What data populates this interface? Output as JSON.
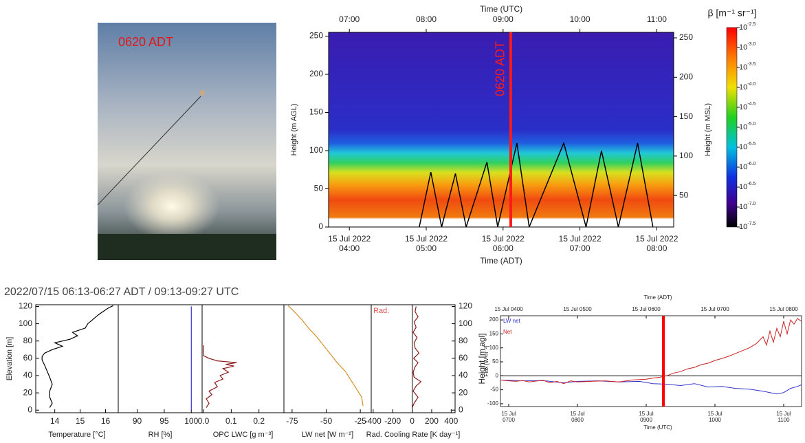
{
  "photo": {
    "label": "0620 ADT"
  },
  "chart_data": [
    {
      "type": "heatmap",
      "x_label": "Time (ADT)",
      "x2_label": "Time (UTC)",
      "y_label": "Height (m AGL)",
      "y2_label": "Height (m MSL)",
      "xlim": [
        3.73,
        8.22
      ],
      "xtick_date": "15 Jul 2022",
      "xticks": [
        {
          "value": 4,
          "label": "04:00"
        },
        {
          "value": 5,
          "label": "05:00"
        },
        {
          "value": 6,
          "label": "06:00"
        },
        {
          "value": 7,
          "label": "07:00"
        },
        {
          "value": 8,
          "label": "08:00"
        }
      ],
      "x2lim": [
        6.73,
        11.22
      ],
      "x2ticks": [
        {
          "value": 7,
          "label": "07:00"
        },
        {
          "value": 8,
          "label": "08:00"
        },
        {
          "value": 9,
          "label": "09:00"
        },
        {
          "value": 10,
          "label": "10:00"
        },
        {
          "value": 11,
          "label": "11:00"
        }
      ],
      "ylim": [
        0,
        255
      ],
      "yticks": [
        0,
        50,
        100,
        150,
        200,
        250
      ],
      "y2lim": [
        10,
        257
      ],
      "y2ticks": [
        50,
        100,
        150,
        200,
        250
      ],
      "series": [
        {
          "color": "#000000",
          "x": [
            4.91,
            5.06,
            5.2,
            5.38,
            5.52,
            5.79,
            5.93,
            6.18,
            6.34,
            6.79,
            7.08,
            7.28,
            7.5,
            7.75,
            7.95
          ],
          "values": [
            0,
            72,
            0,
            70,
            0,
            85,
            0,
            110,
            0,
            110,
            0,
            100,
            0,
            110,
            0
          ]
        }
      ],
      "marker": {
        "x": 6.1,
        "label": "0620 ADT",
        "color": "#ff1a1a"
      },
      "colorbar": {
        "title": "β [m⁻¹ sr⁻¹]",
        "base": "10",
        "lim": [
          -7.5,
          -2.5
        ],
        "ticks": [
          -2.5,
          {
            "value": -3,
            "label": "-3.0"
          },
          -3.5,
          {
            "value": -4,
            "label": "-4.0"
          },
          -4.5,
          {
            "value": -5,
            "label": "-5.0"
          },
          -5.5,
          {
            "value": -6,
            "label": "-6.0"
          },
          -6.5,
          {
            "value": -7,
            "label": "-7.0"
          },
          -7.5
        ]
      }
    },
    {
      "type": "profile",
      "title": "2022/07/15 06:13-06:27 ADT  /  09:13-09:27 UTC",
      "y_label": "Elevation [m]",
      "y2_label": "Height [m agl]",
      "ylim": [
        -3,
        122
      ],
      "yticks": [
        0,
        20,
        40,
        60,
        80,
        100,
        120
      ],
      "panels": [
        {
          "x_label": "Temperature [°C]",
          "xlim": [
            13.25,
            16.5
          ],
          "xticks": [
            14,
            15,
            16
          ],
          "color": "#000000",
          "x": [
            13.8,
            13.9,
            13.8,
            13.8,
            13.9,
            13.8,
            13.7,
            13.6,
            13.5,
            13.5,
            13.6,
            13.9,
            14.3,
            14.0,
            14.6,
            14.9,
            14.7,
            15.2,
            15.3,
            15.5,
            15.7,
            15.9,
            16.1,
            16.3
          ],
          "y": [
            3,
            8,
            15,
            22,
            30,
            38,
            45,
            52,
            58,
            62,
            66,
            70,
            74,
            78,
            82,
            86,
            90,
            95,
            100,
            105,
            110,
            114,
            118,
            121
          ]
        },
        {
          "x_label": "RH [%]",
          "xlim": [
            86.5,
            102
          ],
          "xticks": [
            90,
            95,
            100
          ],
          "color": "#3333cc",
          "x": [
            100,
            100
          ],
          "y": [
            0,
            120
          ]
        },
        {
          "x_label": "OPC LWC [g m⁻³]",
          "xlim": [
            -0.005,
            0.29
          ],
          "xticks": [
            {
              "value": 0,
              "label": "0.0"
            },
            0.1,
            0.2
          ],
          "color": "#8b1a1a",
          "x": [
            0.01,
            0.02,
            0.01,
            0.03,
            0.02,
            0.05,
            0.04,
            0.07,
            0.06,
            0.09,
            0.07,
            0.11,
            0.08,
            0.12,
            0.05,
            0.02,
            0.0,
            0.0,
            0.0
          ],
          "y": [
            3,
            8,
            13,
            18,
            22,
            27,
            32,
            36,
            40,
            44,
            48,
            51,
            53,
            55,
            57,
            60,
            63,
            68,
            75
          ]
        },
        {
          "x_label": "LW net [W m⁻²]",
          "xlim": [
            -81,
            -17
          ],
          "xticks": [
            -75,
            -50,
            -25
          ],
          "color": "#d4912a",
          "x": [
            -23,
            -24,
            -28,
            -32,
            -36,
            -42,
            -47,
            -52,
            -57,
            -63,
            -68,
            -74,
            -78
          ],
          "y": [
            5,
            15,
            25,
            35,
            45,
            55,
            65,
            75,
            85,
            95,
            105,
            115,
            121
          ]
        },
        {
          "x_label": "Rad. Cooling Rate [K day⁻¹]",
          "xlim": [
            -420,
            440
          ],
          "xticks": [
            -400,
            -200,
            0,
            200,
            400
          ],
          "color": "#8b1a1a",
          "annotation": "Rad.",
          "x": [
            0,
            20,
            60,
            10,
            40,
            90,
            20,
            10,
            30,
            60,
            15,
            70,
            30,
            20,
            50,
            10,
            40,
            20,
            60,
            30,
            40
          ],
          "y": [
            3,
            8,
            15,
            22,
            28,
            33,
            38,
            44,
            50,
            55,
            60,
            66,
            72,
            78,
            84,
            90,
            96,
            102,
            108,
            114,
            120
          ]
        }
      ]
    },
    {
      "type": "line",
      "x_label": "Time (UTC)",
      "x2_label": "Time (ADT)",
      "y_label": "Flux [W m⁻²]",
      "xlim": [
        6.88,
        11.26
      ],
      "xtick_date": "15 Jul",
      "xticks": [
        {
          "value": 7,
          "label": "0700"
        },
        {
          "value": 8,
          "label": "0800"
        },
        {
          "value": 9,
          "label": "0900"
        },
        {
          "value": 10,
          "label": "1000"
        },
        {
          "value": 11,
          "label": "1100"
        }
      ],
      "x2lim": [
        3.88,
        8.26
      ],
      "x2ticks": [
        {
          "value": 4,
          "label": "15 Jul 0400"
        },
        {
          "value": 5,
          "label": "15 Jul 0500"
        },
        {
          "value": 6,
          "label": "15 Jul 0600"
        },
        {
          "value": 7,
          "label": "15 Jul 0700"
        },
        {
          "value": 8,
          "label": "15 Jul 0800"
        }
      ],
      "ylim": [
        -110,
        215
      ],
      "yticks": [
        -100,
        -50,
        0,
        50,
        100,
        150,
        200
      ],
      "series": [
        {
          "name": "LW net",
          "color": "#3333cc",
          "x": [
            6.88,
            7.2,
            7.5,
            7.8,
            8.0,
            8.3,
            8.6,
            8.9,
            9.1,
            9.3,
            9.5,
            9.7,
            9.9,
            10.1,
            10.3,
            10.5,
            10.7,
            10.9,
            11.0,
            11.1,
            11.2,
            11.26
          ],
          "values": [
            -15,
            -18,
            -17,
            -25,
            -20,
            -18,
            -22,
            -20,
            -28,
            -30,
            -35,
            -28,
            -40,
            -38,
            -45,
            -48,
            -55,
            -65,
            -60,
            -45,
            -38,
            -32
          ]
        },
        {
          "name": "Net",
          "color": "#cc2222",
          "x": [
            6.88,
            7.0,
            7.1,
            7.2,
            7.3,
            7.4,
            7.5,
            7.6,
            7.7,
            7.8,
            7.9,
            8.0,
            8.2,
            8.4,
            8.6,
            8.8,
            9.0,
            9.1,
            9.2,
            9.3,
            9.4,
            9.5,
            9.6,
            9.7,
            9.8,
            9.9,
            10.0,
            10.1,
            10.2,
            10.3,
            10.4,
            10.5,
            10.6,
            10.7,
            10.75,
            10.8,
            10.85,
            10.9,
            10.95,
            11.0,
            11.05,
            11.1,
            11.15,
            11.2,
            11.26
          ],
          "values": [
            -15,
            -18,
            -20,
            -17,
            -22,
            -19,
            -16,
            -25,
            -20,
            -28,
            -18,
            -22,
            -20,
            -18,
            -22,
            -15,
            -12,
            -8,
            -5,
            0,
            10,
            15,
            25,
            30,
            40,
            45,
            55,
            62,
            70,
            80,
            90,
            100,
            115,
            140,
            110,
            160,
            120,
            170,
            140,
            195,
            150,
            200,
            185,
            205,
            195
          ]
        }
      ],
      "marker": {
        "x": 9.25,
        "color": "#ff0000"
      }
    }
  ]
}
